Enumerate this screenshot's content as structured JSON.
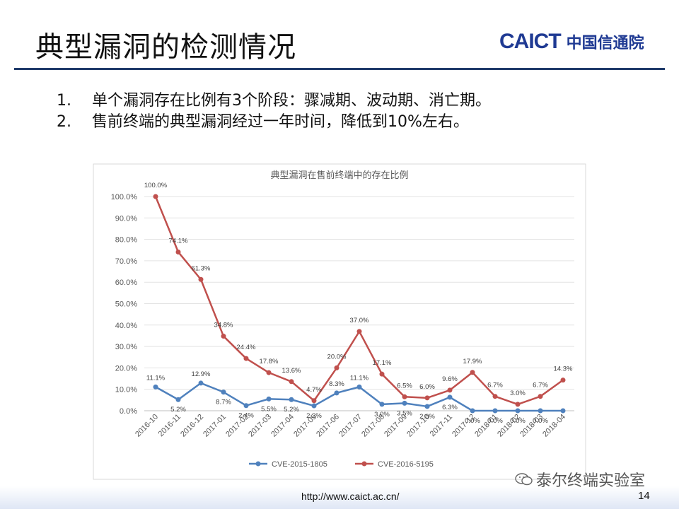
{
  "slide": {
    "title": "典型漏洞的检测情况",
    "logo_en": "CAICT",
    "logo_zh": "中国信通院",
    "points": [
      {
        "num": "1.",
        "text": "单个漏洞存在比例有3个阶段：骤减期、波动期、消亡期。"
      },
      {
        "num": "2.",
        "text": "售前终端的典型漏洞经过一年时间，降低到10%左右。"
      }
    ],
    "url": "http://www.caict.ac.cn/",
    "page_number": "14",
    "watermark": "泰尔终端实验室"
  },
  "chart_data": {
    "type": "line",
    "title": "典型漏洞在售前终端中的存在比例",
    "xlabel": "",
    "ylabel": "",
    "ylim": [
      0,
      100
    ],
    "yticks": [
      "0.0%",
      "10.0%",
      "20.0%",
      "30.0%",
      "40.0%",
      "50.0%",
      "60.0%",
      "70.0%",
      "80.0%",
      "90.0%",
      "100.0%"
    ],
    "categories": [
      "2016-10",
      "2016-11",
      "2016-12",
      "2017-01",
      "2017-02",
      "2017-03",
      "2017-04",
      "2017-05",
      "2017-06",
      "2017-07",
      "2017-08",
      "2017-09",
      "2017-10",
      "2017-11",
      "2017-12",
      "2018-01",
      "2018-02",
      "2018-03",
      "2018-04"
    ],
    "grid": true,
    "legend": "bottom",
    "series": [
      {
        "name": "CVE-2015-1805",
        "color": "#4f81bd",
        "values": [
          11.1,
          5.2,
          12.9,
          8.7,
          2.4,
          5.5,
          5.2,
          2.3,
          8.3,
          11.1,
          3.0,
          3.5,
          2.0,
          6.3,
          0.0,
          0.0,
          0.0,
          0.0,
          0.0
        ],
        "labels": [
          "11.1%",
          "5.2%",
          "12.9%",
          "8.7%",
          "2.4%",
          "5.5%",
          "5.2%",
          "2.3%",
          "8.3%",
          "11.1%",
          "3.0%",
          "3.5%",
          "2.0%",
          "6.3%",
          "0.0%",
          "0.0%",
          "0.0%",
          "0.0%",
          ""
        ]
      },
      {
        "name": "CVE-2016-5195",
        "color": "#c0504d",
        "values": [
          100.0,
          74.1,
          61.3,
          34.8,
          24.4,
          17.8,
          13.6,
          4.7,
          20.0,
          37.0,
          17.1,
          6.5,
          6.0,
          9.6,
          17.9,
          6.7,
          3.0,
          6.7,
          14.3
        ],
        "labels": [
          "100.0%",
          "74.1%",
          "61.3%",
          "34.8%",
          "24.4%",
          "17.8%",
          "13.6%",
          "4.7%",
          "20.0%",
          "37.0%",
          "17.1%",
          "6.5%",
          "6.0%",
          "9.6%",
          "17.9%",
          "6.7%",
          "3.0%",
          "6.7%",
          "14.3%"
        ]
      }
    ]
  }
}
